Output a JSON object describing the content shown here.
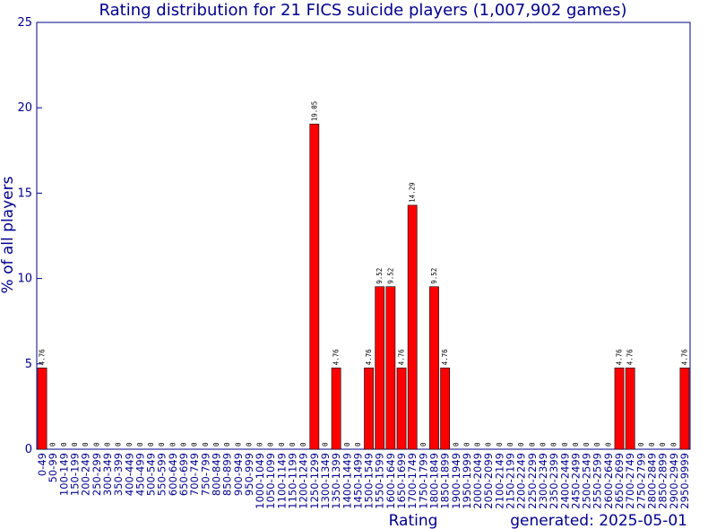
{
  "chart_data": {
    "type": "bar",
    "title": "Rating distribution for 21 FICS suicide players (1,007,902 games)",
    "xlabel": "Rating",
    "ylabel": "% of all players",
    "footer": "generated: 2025-05-01",
    "ylim": [
      0,
      25
    ],
    "yticks": [
      0,
      5,
      10,
      15,
      20,
      25
    ],
    "bar_color": "#ff0000",
    "axis_color": "#00008b",
    "grid": false,
    "categories": [
      "0-49",
      "50-99",
      "100-149",
      "150-199",
      "200-249",
      "250-299",
      "300-349",
      "350-399",
      "400-449",
      "450-499",
      "500-549",
      "550-599",
      "600-649",
      "650-699",
      "700-749",
      "750-799",
      "800-849",
      "850-899",
      "900-949",
      "950-999",
      "1000-1049",
      "1050-1099",
      "1100-1149",
      "1150-1199",
      "1200-1249",
      "1250-1299",
      "1300-1349",
      "1350-1399",
      "1400-1449",
      "1450-1499",
      "1500-1549",
      "1550-1599",
      "1600-1649",
      "1650-1699",
      "1700-1749",
      "1750-1799",
      "1800-1849",
      "1850-1899",
      "1900-1949",
      "1950-1999",
      "2000-2049",
      "2050-2099",
      "2100-2149",
      "2150-2199",
      "2200-2249",
      "2250-2299",
      "2300-2349",
      "2350-2399",
      "2400-2449",
      "2450-2499",
      "2500-2549",
      "2550-2599",
      "2600-2649",
      "2650-2699",
      "2700-2749",
      "2750-2799",
      "2800-2849",
      "2850-2899",
      "2900-2949",
      "2950-9999"
    ],
    "values": [
      4.76,
      0,
      0,
      0,
      0,
      0,
      0,
      0,
      0,
      0,
      0,
      0,
      0,
      0,
      0,
      0,
      0,
      0,
      0,
      0,
      0,
      0,
      0,
      0,
      0,
      19.05,
      0,
      4.76,
      0,
      0,
      4.76,
      9.52,
      9.52,
      4.76,
      14.29,
      0,
      9.52,
      4.76,
      0,
      0,
      0,
      0,
      0,
      0,
      0,
      0,
      0,
      0,
      0,
      0,
      0,
      0,
      0,
      4.76,
      4.76,
      0,
      0,
      0,
      0,
      4.76
    ],
    "value_labels": [
      "4.76",
      "0",
      "0",
      "0",
      "0",
      "0",
      "0",
      "0",
      "0",
      "0",
      "0",
      "0",
      "0",
      "0",
      "0",
      "0",
      "0",
      "0",
      "0",
      "0",
      "0",
      "0",
      "0",
      "0",
      "0",
      "19.05",
      "0",
      "4.76",
      "0",
      "0",
      "4.76",
      "9.52",
      "9.52",
      "4.76",
      "14.29",
      "0",
      "9.52",
      "4.76",
      "0",
      "0",
      "0",
      "0",
      "0",
      "0",
      "0",
      "0",
      "0",
      "0",
      "0",
      "0",
      "0",
      "0",
      "0",
      "4.76",
      "4.76",
      "0",
      "0",
      "0",
      "0",
      "4.76"
    ]
  }
}
